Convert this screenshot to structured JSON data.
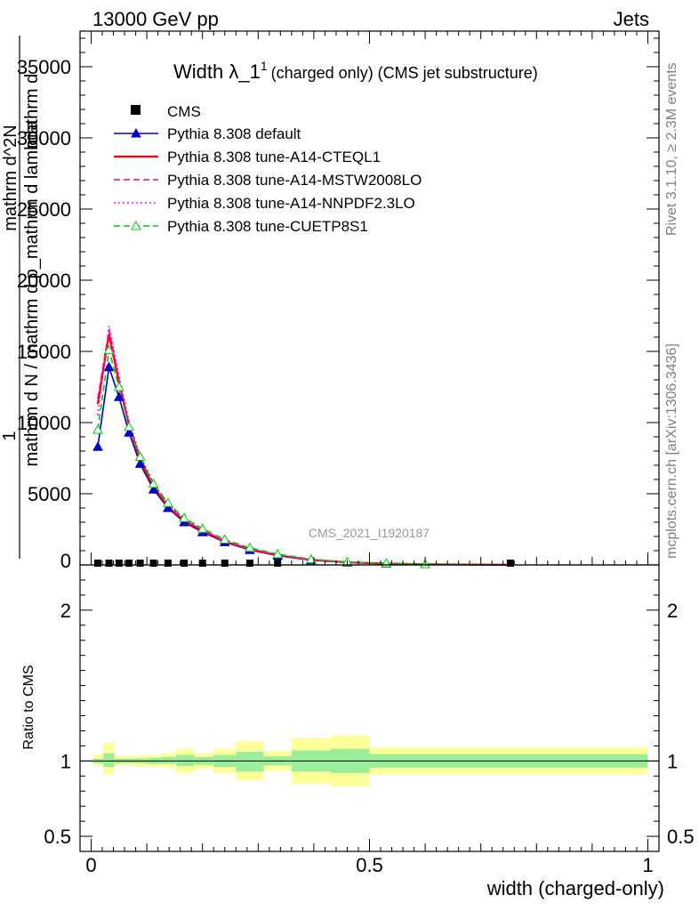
{
  "header": {
    "left": "13000 GeV pp",
    "right": "Jets"
  },
  "side_texts": {
    "rivet": "Rivet 3.1.10, ≥ 2.3M events",
    "mcplots": "mcplots.cern.ch [arXiv:1306.3436]"
  },
  "watermark": "CMS_2021_I1920187",
  "plot_title": {
    "main": "Width λ_1",
    "sup": "1",
    "rest": "(charged only) (CMS jet substructure)"
  },
  "main_ylabel": {
    "num": "1",
    "den": "mathrm d N / mathrm d p_mathrm d lambda",
    "overlay_top": "mathrm d",
    "overlay_mid": "mathrm d p_T mathrm d lambda",
    "overlay_left": "mathrm d^2N"
  },
  "ratio_ylabel": "Ratio to CMS",
  "xlabel": "width (charged-only)",
  "colors": {
    "cms": "#000000",
    "default": "#0000cc",
    "cteql1": "#ff0000",
    "mstw": "#ff0066",
    "nnpdf": "#ff00ff",
    "cuetp": "#00cc00",
    "band_inner": "#99ee99",
    "band_outer": "#ffff99"
  },
  "chart_data": {
    "type": "line",
    "x_range": [
      -0.02,
      1.02
    ],
    "main_y_range": [
      0,
      37500
    ],
    "ratio_y_range": [
      0.4,
      2.3
    ],
    "main_yticks": [
      {
        "v": 0,
        "label": "0"
      },
      {
        "v": 5000,
        "label": "5000"
      },
      {
        "v": 10000,
        "label": "10000"
      },
      {
        "v": 15000,
        "label": "15000"
      },
      {
        "v": 20000,
        "label": "20000"
      },
      {
        "v": 25000,
        "label": "25000"
      },
      {
        "v": 30000,
        "label": "30000"
      },
      {
        "v": 35000,
        "label": "35000"
      }
    ],
    "ratio_yticks": [
      {
        "v": 0.5,
        "label": "0.5"
      },
      {
        "v": 1,
        "label": "1"
      },
      {
        "v": 2,
        "label": "2"
      }
    ],
    "xticks": [
      {
        "v": 0,
        "label": "0"
      },
      {
        "v": 0.5,
        "label": "0.5"
      },
      {
        "v": 1,
        "label": "1"
      }
    ],
    "cms_points": [
      {
        "x": 0.012,
        "y": 0
      },
      {
        "x": 0.032,
        "y": 0
      },
      {
        "x": 0.05,
        "y": 0
      },
      {
        "x": 0.068,
        "y": 0
      },
      {
        "x": 0.088,
        "y": 0
      },
      {
        "x": 0.112,
        "y": 0
      },
      {
        "x": 0.138,
        "y": 0
      },
      {
        "x": 0.167,
        "y": 0
      },
      {
        "x": 0.2,
        "y": 0
      },
      {
        "x": 0.24,
        "y": 0
      },
      {
        "x": 0.285,
        "y": 0
      },
      {
        "x": 0.335,
        "y": 0
      },
      {
        "x": 0.753,
        "y": 0
      }
    ],
    "series": [
      {
        "name": "Pythia 8.308 default",
        "key": "default",
        "style": "solid",
        "marker": "filled-triangle",
        "x": [
          0.012,
          0.032,
          0.05,
          0.068,
          0.088,
          0.112,
          0.138,
          0.167,
          0.2,
          0.24,
          0.285,
          0.335,
          0.395,
          0.46,
          0.53,
          0.6,
          0.68,
          0.753
        ],
        "y": [
          8300,
          13900,
          11800,
          9300,
          7100,
          5300,
          4000,
          3000,
          2300,
          1600,
          1050,
          650,
          330,
          170,
          90,
          45,
          20,
          8
        ]
      },
      {
        "name": "Pythia 8.308 tune-A14-CTEQL1",
        "key": "cteql1",
        "style": "solid",
        "marker": "none",
        "x": [
          0.012,
          0.032,
          0.05,
          0.068,
          0.088,
          0.112,
          0.138,
          0.167,
          0.2,
          0.24,
          0.285,
          0.335,
          0.395,
          0.46,
          0.53,
          0.6,
          0.68,
          0.753
        ],
        "y": [
          11300,
          16200,
          12800,
          9800,
          7400,
          5500,
          4100,
          3100,
          2400,
          1650,
          1100,
          680,
          350,
          180,
          95,
          48,
          22,
          9
        ]
      },
      {
        "name": "Pythia 8.308 tune-A14-MSTW2008LO",
        "key": "mstw",
        "style": "dashed",
        "marker": "none",
        "x": [
          0.012,
          0.032,
          0.05,
          0.068,
          0.088,
          0.112,
          0.138,
          0.167,
          0.2,
          0.24,
          0.285,
          0.335,
          0.395,
          0.46,
          0.53,
          0.6,
          0.68,
          0.753
        ],
        "y": [
          11700,
          16500,
          13000,
          9900,
          7500,
          5600,
          4150,
          3150,
          2420,
          1670,
          1110,
          690,
          355,
          182,
          96,
          48,
          22,
          9
        ]
      },
      {
        "name": "Pythia 8.308 tune-A14-NNPDF2.3LO",
        "key": "nnpdf",
        "style": "dotted",
        "marker": "none",
        "x": [
          0.012,
          0.032,
          0.05,
          0.068,
          0.088,
          0.112,
          0.138,
          0.167,
          0.2,
          0.24,
          0.285,
          0.335,
          0.395,
          0.46,
          0.53,
          0.6,
          0.68,
          0.753
        ],
        "y": [
          10500,
          16800,
          13300,
          10100,
          7700,
          5750,
          4300,
          3250,
          2500,
          1720,
          1150,
          710,
          365,
          188,
          99,
          50,
          23,
          9
        ]
      },
      {
        "name": "Pythia 8.308 tune-CUETP8S1",
        "key": "cuetp",
        "style": "dashed",
        "marker": "open-triangle",
        "x": [
          0.012,
          0.032,
          0.05,
          0.068,
          0.088,
          0.112,
          0.138,
          0.167,
          0.2,
          0.24,
          0.285,
          0.335,
          0.395,
          0.46,
          0.53,
          0.6,
          0.68,
          0.753
        ],
        "y": [
          9500,
          15100,
          12500,
          9700,
          7600,
          5700,
          4350,
          3300,
          2550,
          1780,
          1200,
          760,
          400,
          210,
          110,
          55,
          25,
          10
        ]
      }
    ],
    "ratio_bands": [
      {
        "x0": 0.003,
        "x1": 0.022,
        "in_lo": 0.985,
        "in_hi": 1.015,
        "out_lo": 0.97,
        "out_hi": 1.04
      },
      {
        "x0": 0.022,
        "x1": 0.042,
        "in_lo": 0.96,
        "in_hi": 1.05,
        "out_lo": 0.91,
        "out_hi": 1.12
      },
      {
        "x0": 0.042,
        "x1": 0.06,
        "in_lo": 0.985,
        "in_hi": 1.015,
        "out_lo": 0.97,
        "out_hi": 1.035
      },
      {
        "x0": 0.06,
        "x1": 0.078,
        "in_lo": 0.985,
        "in_hi": 1.015,
        "out_lo": 0.97,
        "out_hi": 1.035
      },
      {
        "x0": 0.078,
        "x1": 0.1,
        "in_lo": 0.985,
        "in_hi": 1.015,
        "out_lo": 0.965,
        "out_hi": 1.035
      },
      {
        "x0": 0.1,
        "x1": 0.125,
        "in_lo": 0.98,
        "in_hi": 1.02,
        "out_lo": 0.96,
        "out_hi": 1.04
      },
      {
        "x0": 0.125,
        "x1": 0.152,
        "in_lo": 0.98,
        "in_hi": 1.025,
        "out_lo": 0.955,
        "out_hi": 1.05
      },
      {
        "x0": 0.152,
        "x1": 0.185,
        "in_lo": 0.965,
        "in_hi": 1.04,
        "out_lo": 0.92,
        "out_hi": 1.08
      },
      {
        "x0": 0.185,
        "x1": 0.22,
        "in_lo": 0.975,
        "in_hi": 1.025,
        "out_lo": 0.95,
        "out_hi": 1.05
      },
      {
        "x0": 0.22,
        "x1": 0.26,
        "in_lo": 0.96,
        "in_hi": 1.04,
        "out_lo": 0.92,
        "out_hi": 1.08
      },
      {
        "x0": 0.26,
        "x1": 0.31,
        "in_lo": 0.93,
        "in_hi": 1.06,
        "out_lo": 0.87,
        "out_hi": 1.13
      },
      {
        "x0": 0.31,
        "x1": 0.36,
        "in_lo": 0.97,
        "in_hi": 1.03,
        "out_lo": 0.935,
        "out_hi": 1.065
      },
      {
        "x0": 0.36,
        "x1": 0.43,
        "in_lo": 0.93,
        "in_hi": 1.07,
        "out_lo": 0.85,
        "out_hi": 1.15
      },
      {
        "x0": 0.43,
        "x1": 0.5,
        "in_lo": 0.92,
        "in_hi": 1.08,
        "out_lo": 0.83,
        "out_hi": 1.17
      },
      {
        "x0": 0.5,
        "x1": 1.0,
        "in_lo": 0.955,
        "in_hi": 1.045,
        "out_lo": 0.91,
        "out_hi": 1.09
      }
    ]
  }
}
